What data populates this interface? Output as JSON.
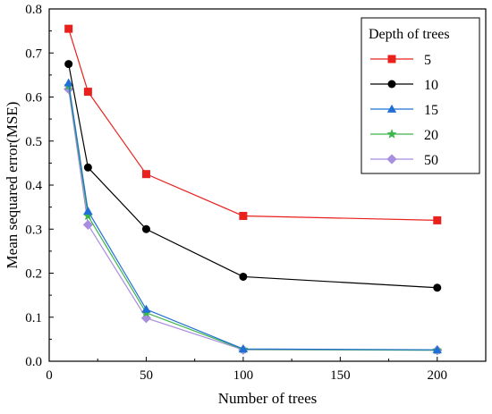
{
  "chart_data": {
    "type": "line",
    "xlabel": "Number of trees",
    "ylabel": "Mean sequared error(MSE)",
    "xlim": [
      0,
      225
    ],
    "ylim": [
      0,
      0.8
    ],
    "xticks": [
      0,
      50,
      100,
      150,
      200
    ],
    "yticks": [
      0.0,
      0.1,
      0.2,
      0.3,
      0.4,
      0.5,
      0.6,
      0.7,
      0.8
    ],
    "xtick_labels": [
      "0",
      "50",
      "100",
      "150",
      "200"
    ],
    "ytick_labels": [
      "0.0",
      "0.1",
      "0.2",
      "0.3",
      "0.4",
      "0.5",
      "0.6",
      "0.7",
      "0.8"
    ],
    "grid": false,
    "legend": {
      "title": "Depth of trees",
      "placement": "top-right"
    },
    "x": [
      10,
      20,
      50,
      100,
      200
    ],
    "series": [
      {
        "name": "5",
        "values": [
          0.755,
          0.612,
          0.425,
          0.33,
          0.32
        ],
        "color": "#e8211d",
        "marker": "square"
      },
      {
        "name": "10",
        "values": [
          0.675,
          0.44,
          0.3,
          0.192,
          0.167
        ],
        "color": "#000000",
        "marker": "circle"
      },
      {
        "name": "15",
        "values": [
          0.632,
          0.341,
          0.118,
          0.028,
          0.026
        ],
        "color": "#1f6fd4",
        "marker": "triangle"
      },
      {
        "name": "20",
        "values": [
          0.625,
          0.33,
          0.11,
          0.027,
          0.025
        ],
        "color": "#3cb54a",
        "marker": "star"
      },
      {
        "name": "50",
        "values": [
          0.618,
          0.31,
          0.098,
          0.026,
          0.025
        ],
        "color": "#a98ee0",
        "marker": "diamond"
      }
    ]
  }
}
